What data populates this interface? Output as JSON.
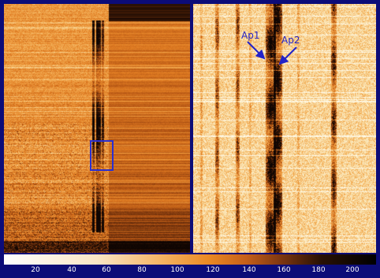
{
  "annotations": {
    "ap1": "Ap1",
    "ap2": "Ap2"
  },
  "colorbar": {
    "ticks": [
      "20",
      "40",
      "60",
      "80",
      "100",
      "120",
      "140",
      "160",
      "180",
      "200"
    ],
    "colors": [
      "#ffffff",
      "#fbe6c6",
      "#f5b565",
      "#eb8a23",
      "#c7601a",
      "#7a3510",
      "#2a1205",
      "#000000"
    ]
  },
  "colors": {
    "frame": "#0c0c78",
    "box": "#2a2fd0",
    "annotation": "#2323c8"
  }
}
